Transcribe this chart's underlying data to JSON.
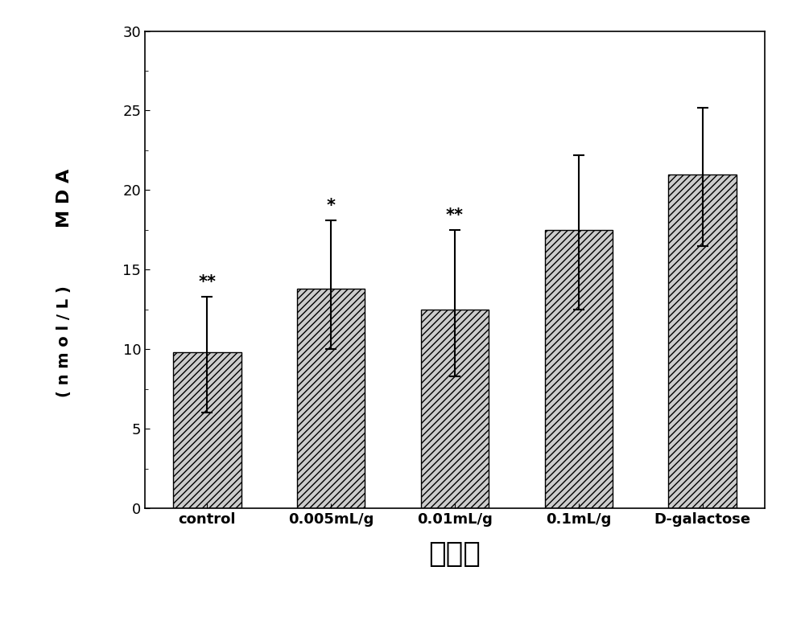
{
  "categories": [
    "control",
    "0.005mL/g",
    "0.01mL/g",
    "0.1mL/g",
    "D-galactose"
  ],
  "values": [
    9.8,
    13.8,
    12.5,
    17.5,
    21.0
  ],
  "errors_upper": [
    3.5,
    4.3,
    5.0,
    4.7,
    4.2
  ],
  "errors_lower": [
    3.8,
    3.8,
    4.2,
    5.0,
    4.5
  ],
  "significance": [
    "**",
    "*",
    "**",
    "",
    ""
  ],
  "ylabel_line1": "M D A",
  "ylabel_line2": "( n m o l / L )",
  "xlabel": "分　组",
  "ylim": [
    0,
    30
  ],
  "yticks": [
    0,
    5,
    10,
    15,
    20,
    25,
    30
  ],
  "bar_color": "#cccccc",
  "hatch": "////",
  "bar_width": 0.55,
  "background_color": "#ffffff",
  "plot_background": "#ffffff",
  "sig_fontsize": 15,
  "label_fontsize": 16,
  "tick_fontsize": 13,
  "xlabel_fontsize": 26
}
